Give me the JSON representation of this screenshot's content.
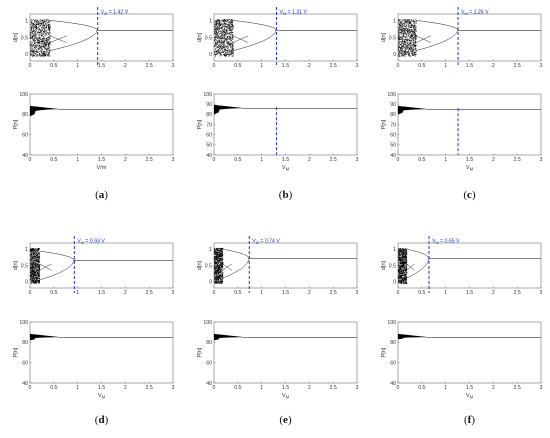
{
  "figure": {
    "panels": [
      {
        "id": "a",
        "caption_open": "(",
        "caption_letter": "a",
        "caption_close": ")",
        "vm_label": "V",
        "vm_sub": "M",
        "vm_value": "= 1.42 V"
      },
      {
        "id": "b",
        "caption_open": "(",
        "caption_letter": "b",
        "caption_close": ")",
        "vm_label": "V",
        "vm_sub": "M",
        "vm_value": "= 1.31 V"
      },
      {
        "id": "c",
        "caption_open": "(",
        "caption_letter": "c",
        "caption_close": ")",
        "vm_label": "V",
        "vm_sub": "M",
        "vm_value": "= 1.26 V"
      },
      {
        "id": "d",
        "caption_open": "(",
        "caption_letter": "d",
        "caption_close": ")",
        "vm_label": "V",
        "vm_sub": "M",
        "vm_value": "= 0.93 V"
      },
      {
        "id": "e",
        "caption_open": "(",
        "caption_letter": "e",
        "caption_close": ")",
        "vm_label": "V",
        "vm_sub": "M",
        "vm_value": "= 0.74 V"
      },
      {
        "id": "f",
        "caption_open": "(",
        "caption_letter": "f",
        "caption_close": ")",
        "vm_label": "V",
        "vm_sub": "M",
        "vm_value": "= 0.65 V"
      }
    ]
  },
  "chart_data": [
    {
      "panel": "a",
      "plot": "top",
      "type": "scatter",
      "xlabel": "",
      "ylabel": "d[n]",
      "xlim": [
        0,
        3
      ],
      "ylim": [
        -0.2,
        1.2
      ],
      "xticks": [
        "0",
        "0.5",
        "1",
        "1.5",
        "2",
        "2.5",
        "3"
      ],
      "yticks": [
        "0",
        "0.5",
        "1"
      ],
      "vline_x": 1.42,
      "steady_value": 0.71,
      "chaos_end": 0.42,
      "annotation": "V_M = 1.42 V"
    },
    {
      "panel": "a",
      "plot": "bottom",
      "type": "area",
      "xlabel": "V/m",
      "ylabel": "P[n]",
      "xlim": [
        0,
        3
      ],
      "ylim": [
        40,
        100
      ],
      "xticks": [
        "0",
        "0.5",
        "1",
        "1.5",
        "2",
        "2.5",
        "3"
      ],
      "yticks": [
        "40",
        "60",
        "80",
        "100"
      ],
      "steady_value": 85,
      "min_value": 78
    },
    {
      "panel": "b",
      "plot": "top",
      "type": "scatter",
      "xlabel": "",
      "ylabel": "d[n]",
      "xlim": [
        0,
        3
      ],
      "ylim": [
        -0.2,
        1.2
      ],
      "xticks": [
        "0",
        "0.5",
        "1",
        "1.5",
        "2",
        "2.5",
        "3"
      ],
      "yticks": [
        "0",
        "0.5",
        "1"
      ],
      "vline_x": 1.31,
      "steady_value": 0.71,
      "chaos_end": 0.4,
      "annotation": "V_M = 1.31 V"
    },
    {
      "panel": "b",
      "plot": "bottom",
      "type": "area",
      "xlabel": "V_M",
      "ylabel": "P[n]",
      "xlim": [
        0,
        3
      ],
      "ylim": [
        40,
        100
      ],
      "xticks": [
        "0",
        "0.5",
        "1",
        "1.5",
        "2",
        "2.5",
        "3"
      ],
      "yticks": [
        "40",
        "50",
        "60",
        "70",
        "80",
        "90",
        "100"
      ],
      "steady_value": 86,
      "min_value": 80,
      "vline_x": 1.31
    },
    {
      "panel": "c",
      "plot": "top",
      "type": "scatter",
      "xlabel": "",
      "ylabel": "d[n]",
      "xlim": [
        0,
        3
      ],
      "ylim": [
        -0.2,
        1.2
      ],
      "xticks": [
        "0",
        "0.5",
        "1",
        "1.5",
        "2",
        "2.5",
        "3"
      ],
      "yticks": [
        "0",
        "0.5",
        "1"
      ],
      "vline_x": 1.26,
      "steady_value": 0.71,
      "chaos_end": 0.38,
      "annotation": "V_M = 1.26 V"
    },
    {
      "panel": "c",
      "plot": "bottom",
      "type": "area",
      "xlabel": "V_M",
      "ylabel": "P[n]",
      "xlim": [
        0,
        3
      ],
      "ylim": [
        40,
        100
      ],
      "xticks": [
        "0",
        "0.5",
        "1",
        "1.5",
        "2",
        "2.5",
        "3"
      ],
      "yticks": [
        "40",
        "50",
        "60",
        "70",
        "80",
        "90",
        "100"
      ],
      "steady_value": 85,
      "min_value": 80,
      "vline_x": 1.26
    },
    {
      "panel": "d",
      "plot": "top",
      "type": "scatter",
      "xlabel": "",
      "ylabel": "d[n]",
      "xlim": [
        0,
        3
      ],
      "ylim": [
        -0.2,
        1.2
      ],
      "xticks": [
        "0",
        "0.5",
        "1",
        "1.5",
        "2",
        "2.5",
        "3"
      ],
      "yticks": [
        "0",
        "0.5",
        "1"
      ],
      "vline_x": 0.93,
      "steady_value": 0.65,
      "chaos_end": 0.2,
      "annotation": "V_M = 0.93 V"
    },
    {
      "panel": "d",
      "plot": "bottom",
      "type": "area",
      "xlabel": "V_M",
      "ylabel": "P[n]",
      "xlim": [
        0,
        3
      ],
      "ylim": [
        40,
        100
      ],
      "xticks": [
        "0",
        "0.5",
        "1",
        "1.5",
        "2",
        "2.5",
        "3"
      ],
      "yticks": [
        "40",
        "60",
        "80",
        "100"
      ],
      "steady_value": 85,
      "min_value": 82
    },
    {
      "panel": "e",
      "plot": "top",
      "type": "scatter",
      "xlabel": "",
      "ylabel": "d[n]",
      "xlim": [
        0,
        3
      ],
      "ylim": [
        -0.2,
        1.2
      ],
      "xticks": [
        "0",
        "0.5",
        "1",
        "1.5",
        "2",
        "2.5",
        "3"
      ],
      "yticks": [
        "0",
        "0.5",
        "1"
      ],
      "vline_x": 0.74,
      "steady_value": 0.71,
      "chaos_end": 0.18,
      "annotation": "V_M = 0.74 V"
    },
    {
      "panel": "e",
      "plot": "bottom",
      "type": "area",
      "xlabel": "V_M",
      "ylabel": "P[n]",
      "xlim": [
        0,
        3
      ],
      "ylim": [
        40,
        100
      ],
      "xticks": [
        "0",
        "0.5",
        "1",
        "1.5",
        "2",
        "2.5",
        "3"
      ],
      "yticks": [
        "40",
        "60",
        "80",
        "100"
      ],
      "steady_value": 85,
      "min_value": 82
    },
    {
      "panel": "f",
      "plot": "top",
      "type": "scatter",
      "xlabel": "",
      "ylabel": "d[n]",
      "xlim": [
        0,
        3
      ],
      "ylim": [
        -0.2,
        1.2
      ],
      "xticks": [
        "0",
        "0.5",
        "1",
        "1.5",
        "2",
        "2.5",
        "3"
      ],
      "yticks": [
        "0",
        "0.5",
        "1"
      ],
      "vline_x": 0.65,
      "steady_value": 0.71,
      "chaos_end": 0.18,
      "annotation": "V_M = 0.65 V"
    },
    {
      "panel": "f",
      "plot": "bottom",
      "type": "area",
      "xlabel": "V_M",
      "ylabel": "P[n]",
      "xlim": [
        0,
        3
      ],
      "ylim": [
        40,
        100
      ],
      "xticks": [
        "0",
        "0.5",
        "1",
        "1.5",
        "2",
        "2.5",
        "3"
      ],
      "yticks": [
        "40",
        "60",
        "80",
        "100"
      ],
      "steady_value": 85,
      "min_value": 83
    }
  ],
  "colors": {
    "annotation": "#2233cc",
    "data": "#000000",
    "axis": "#555555"
  }
}
